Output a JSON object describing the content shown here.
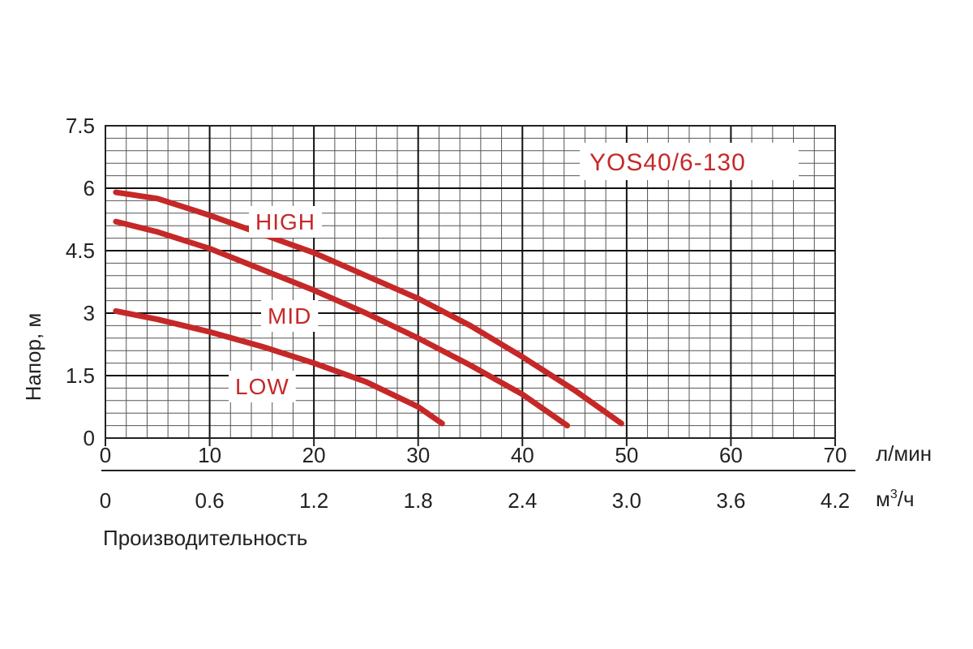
{
  "chart_data": {
    "type": "line",
    "title": "",
    "model": "YOS40/6-130",
    "ylabel": "Напор, м",
    "xlabel": "Производительность",
    "x_unit_primary": "л/мин",
    "x_unit_secondary_base": "м",
    "x_unit_secondary_sup": "3",
    "x_unit_secondary_tail": "/ч",
    "xlim": [
      0,
      70
    ],
    "ylim": [
      0,
      7.5
    ],
    "grid": true,
    "y_ticks": [
      "0",
      "1.5",
      "3",
      "4.5",
      "6",
      "7.5"
    ],
    "x_ticks_primary": [
      "0",
      "10",
      "20",
      "30",
      "40",
      "50",
      "60",
      "70"
    ],
    "x_ticks_secondary": [
      "0",
      "0.6",
      "1.2",
      "1.8",
      "2.4",
      "3.0",
      "3.6",
      "4.2"
    ],
    "series_color": "#c62828",
    "series": [
      {
        "name": "HIGH",
        "x": [
          1,
          5,
          10,
          15,
          20,
          25,
          30,
          35,
          40,
          45,
          49.5
        ],
        "y": [
          5.9,
          5.75,
          5.35,
          4.9,
          4.45,
          3.9,
          3.35,
          2.7,
          1.95,
          1.15,
          0.35
        ]
      },
      {
        "name": "MID",
        "x": [
          1,
          5,
          10,
          15,
          20,
          25,
          30,
          35,
          40,
          44.3
        ],
        "y": [
          5.2,
          4.95,
          4.55,
          4.05,
          3.55,
          3.0,
          2.4,
          1.75,
          1.05,
          0.3
        ]
      },
      {
        "name": "LOW",
        "x": [
          1,
          5,
          10,
          15,
          20,
          25,
          30,
          32.3
        ],
        "y": [
          3.05,
          2.85,
          2.55,
          2.2,
          1.8,
          1.35,
          0.75,
          0.35
        ]
      }
    ]
  }
}
